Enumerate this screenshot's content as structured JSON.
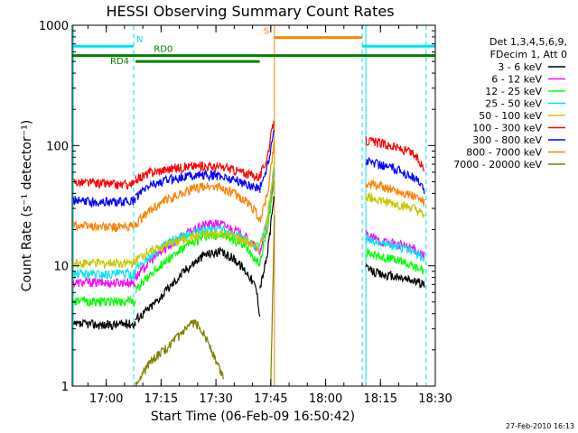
{
  "chart_data": {
    "type": "line",
    "title": "HESSI Observing Summary Count Rates",
    "xlabel": "Start Time (06-Feb-09 16:50:42)",
    "ylabel": "Count Rate (s⁻¹ detector⁻¹)",
    "yscale": "log",
    "ylim": [
      1,
      1000
    ],
    "xlim": [
      "16:50:42",
      "18:30:00"
    ],
    "x_ticks": [
      "17:00",
      "17:15",
      "17:30",
      "17:45",
      "18:00",
      "18:15",
      "18:30"
    ],
    "y_ticks": [
      1,
      10,
      100,
      1000
    ],
    "y_tick_labels": [
      "1",
      "10",
      "100",
      "1000"
    ],
    "footer": "27-Feb-2010 16:13",
    "legend_header": [
      "Det 1,3,4,5,6,9,",
      "FDecim 1, Att 0"
    ],
    "legend_position": "right",
    "gaps": [
      {
        "from": "17:08:00",
        "to": "17:42:00",
        "label": "RD4",
        "color": "#008000"
      },
      {
        "from": "17:46:00",
        "to": "18:10:00",
        "label": "",
        "color": "#ffffff"
      }
    ],
    "flag_bars": [
      {
        "label": "N",
        "color": "#00e5ee",
        "start": "16:50:42",
        "end": "18:30:00",
        "y": 670,
        "breaks": [
          [
            "17:07:30",
            "18:10:00"
          ]
        ]
      },
      {
        "label": "RD0",
        "color": "#008000",
        "start": "16:50:42",
        "end": "18:30:00",
        "y": 560,
        "breaks": []
      },
      {
        "label": "S",
        "color": "#ff8000",
        "start": "17:46:00",
        "end": "18:10:00",
        "y": 790,
        "breaks": []
      }
    ],
    "vlines": [
      {
        "time": "16:51:00",
        "color": "#00e5ee",
        "dashed": false
      },
      {
        "time": "17:07:30",
        "color": "#00e5ee",
        "dashed": true
      },
      {
        "time": "17:46:00",
        "color": "#ff8000",
        "dashed": false
      },
      {
        "time": "18:10:00",
        "color": "#00e5ee",
        "dashed": true
      },
      {
        "time": "18:11:00",
        "color": "#00e5ee",
        "dashed": false
      },
      {
        "time": "18:27:30",
        "color": "#00e5ee",
        "dashed": true
      }
    ],
    "series": [
      {
        "name": "3 - 6 keV",
        "color": "#000000",
        "segments": [
          {
            "x": [
              "16:51",
              "16:55",
              "17:00",
              "17:05",
              "17:08"
            ],
            "y": [
              3.2,
              3.3,
              3.2,
              3.3,
              3.3
            ]
          },
          {
            "x": [
              "17:08",
              "17:12",
              "17:17",
              "17:22",
              "17:27",
              "17:31",
              "17:35",
              "17:39",
              "17:41",
              "17:42"
            ],
            "y": [
              3.6,
              4.5,
              6.5,
              9.5,
              12.5,
              13.0,
              11.5,
              8.5,
              6.5,
              4.0
            ]
          },
          {
            "x": [
              "17:42",
              "17:44",
              "17:46"
            ],
            "y": [
              6.5,
              12.0,
              40.0
            ]
          },
          {
            "x": [
              "18:11",
              "18:15",
              "18:20",
              "18:24",
              "18:27"
            ],
            "y": [
              9.5,
              8.5,
              8.0,
              7.5,
              7.0
            ]
          }
        ]
      },
      {
        "name": "6 - 12 keV",
        "color": "#ff00ff",
        "segments": [
          {
            "x": [
              "16:51",
              "16:55",
              "17:00",
              "17:05",
              "17:08"
            ],
            "y": [
              7.2,
              7.3,
              7.2,
              7.3,
              7.2
            ]
          },
          {
            "x": [
              "17:08",
              "17:12",
              "17:17",
              "17:22",
              "17:27",
              "17:31",
              "17:35",
              "17:39",
              "17:41",
              "17:42"
            ],
            "y": [
              8.0,
              11.0,
              14.5,
              18.5,
              22.0,
              22.5,
              20.0,
              16.5,
              14.0,
              12.5
            ]
          },
          {
            "x": [
              "17:42",
              "17:44",
              "17:46"
            ],
            "y": [
              13.0,
              22.0,
              60.0
            ]
          },
          {
            "x": [
              "18:11",
              "18:15",
              "18:20",
              "18:24",
              "18:27"
            ],
            "y": [
              18.0,
              16.0,
              15.0,
              14.0,
              12.0
            ]
          }
        ]
      },
      {
        "name": "12 - 25 keV",
        "color": "#00ff00",
        "segments": [
          {
            "x": [
              "16:51",
              "16:55",
              "17:00",
              "17:05",
              "17:08"
            ],
            "y": [
              5.0,
              5.1,
              5.0,
              5.1,
              5.0
            ]
          },
          {
            "x": [
              "17:08",
              "17:12",
              "17:17",
              "17:22",
              "17:27",
              "17:31",
              "17:35",
              "17:39",
              "17:41",
              "17:42"
            ],
            "y": [
              6.2,
              8.5,
              11.5,
              14.5,
              17.5,
              18.0,
              16.5,
              13.5,
              11.0,
              10.5
            ]
          },
          {
            "x": [
              "17:42",
              "17:44",
              "17:46"
            ],
            "y": [
              11.0,
              20.0,
              50.0
            ]
          },
          {
            "x": [
              "18:11",
              "18:15",
              "18:20",
              "18:24",
              "18:27"
            ],
            "y": [
              13.0,
              12.0,
              11.0,
              10.0,
              9.0
            ]
          }
        ]
      },
      {
        "name": "25 - 50 keV",
        "color": "#00e5ee",
        "segments": [
          {
            "x": [
              "16:51",
              "16:55",
              "17:00",
              "17:05",
              "17:08"
            ],
            "y": [
              8.5,
              8.6,
              8.5,
              8.6,
              8.5
            ]
          },
          {
            "x": [
              "17:08",
              "17:12",
              "17:17",
              "17:22",
              "17:27",
              "17:31",
              "17:35",
              "17:39",
              "17:41",
              "17:42"
            ],
            "y": [
              9.5,
              12.0,
              15.5,
              18.0,
              20.0,
              20.5,
              18.5,
              16.0,
              14.5,
              14.0
            ]
          },
          {
            "x": [
              "17:42",
              "17:44",
              "17:46"
            ],
            "y": [
              14.5,
              24.0,
              70.0
            ]
          },
          {
            "x": [
              "18:11",
              "18:15",
              "18:20",
              "18:24",
              "18:27"
            ],
            "y": [
              17.0,
              15.5,
              14.5,
              13.0,
              11.5
            ]
          }
        ]
      },
      {
        "name": "50 - 100 keV",
        "color": "#c8c800",
        "segments": [
          {
            "x": [
              "16:51",
              "16:55",
              "17:00",
              "17:05",
              "17:08"
            ],
            "y": [
              10.5,
              10.6,
              10.5,
              10.6,
              10.5
            ]
          },
          {
            "x": [
              "17:08",
              "17:12",
              "17:17",
              "17:22",
              "17:27",
              "17:31",
              "17:35",
              "17:39",
              "17:41",
              "17:42"
            ],
            "y": [
              11.0,
              13.5,
              15.0,
              17.0,
              18.0,
              18.5,
              17.5,
              15.5,
              14.5,
              14.0
            ]
          },
          {
            "x": [
              "17:42",
              "17:44",
              "17:46"
            ],
            "y": [
              14.5,
              24.0,
              75.0
            ]
          },
          {
            "x": [
              "18:11",
              "18:15",
              "18:20",
              "18:24",
              "18:27"
            ],
            "y": [
              38.0,
              35.0,
              32.0,
              30.0,
              26.0
            ]
          }
        ]
      },
      {
        "name": "100 - 300 keV",
        "color": "#ff0000",
        "segments": [
          {
            "x": [
              "16:51",
              "16:55",
              "17:00",
              "17:05",
              "17:08"
            ],
            "y": [
              50.0,
              49.0,
              48.0,
              47.0,
              48.0
            ]
          },
          {
            "x": [
              "17:08",
              "17:12",
              "17:17",
              "17:22",
              "17:27",
              "17:31",
              "17:35",
              "17:39",
              "17:41",
              "17:42"
            ],
            "y": [
              52.0,
              60.0,
              64.0,
              67.0,
              68.0,
              66.0,
              63.0,
              58.0,
              56.0,
              55.0
            ]
          },
          {
            "x": [
              "17:42",
              "17:44",
              "17:46"
            ],
            "y": [
              55.0,
              80.0,
              170.0
            ]
          },
          {
            "x": [
              "18:11",
              "18:15",
              "18:20",
              "18:24",
              "18:27"
            ],
            "y": [
              110.0,
              105.0,
              95.0,
              85.0,
              65.0
            ]
          }
        ]
      },
      {
        "name": "300 - 800 keV",
        "color": "#0000ff",
        "segments": [
          {
            "x": [
              "16:51",
              "16:55",
              "17:00",
              "17:05",
              "17:08"
            ],
            "y": [
              35.0,
              34.0,
              34.0,
              34.0,
              35.0
            ]
          },
          {
            "x": [
              "17:08",
              "17:12",
              "17:17",
              "17:22",
              "17:27",
              "17:31",
              "17:35",
              "17:39",
              "17:41",
              "17:42"
            ],
            "y": [
              37.0,
              47.0,
              52.0,
              56.0,
              57.0,
              56.0,
              52.0,
              47.0,
              45.0,
              44.0
            ]
          },
          {
            "x": [
              "17:42",
              "17:44",
              "17:46"
            ],
            "y": [
              44.0,
              65.0,
              140.0
            ]
          },
          {
            "x": [
              "18:11",
              "18:15",
              "18:20",
              "18:24",
              "18:27"
            ],
            "y": [
              75.0,
              70.0,
              62.0,
              55.0,
              43.0
            ]
          }
        ]
      },
      {
        "name": "800 - 7000 keV",
        "color": "#ff8000",
        "segments": [
          {
            "x": [
              "16:51",
              "16:55",
              "17:00",
              "17:05",
              "17:08"
            ],
            "y": [
              22.0,
              21.5,
              21.0,
              21.0,
              21.5
            ]
          },
          {
            "x": [
              "17:08",
              "17:12",
              "17:17",
              "17:22",
              "17:27",
              "17:31",
              "17:35",
              "17:39",
              "17:41",
              "17:42"
            ],
            "y": [
              22.0,
              29.0,
              36.0,
              42.0,
              46.0,
              45.0,
              40.0,
              33.0,
              28.0,
              23.0
            ]
          },
          {
            "x": [
              "17:42",
              "17:44",
              "17:46"
            ],
            "y": [
              24.0,
              38.0,
              110.0
            ]
          },
          {
            "x": [
              "18:11",
              "18:15",
              "18:20",
              "18:24",
              "18:27"
            ],
            "y": [
              48.0,
              46.0,
              42.0,
              38.0,
              34.0
            ]
          }
        ]
      },
      {
        "name": "7000 - 20000 keV",
        "color": "#808000",
        "segments": [
          {
            "x": [
              "17:08",
              "17:12",
              "17:16",
              "17:20",
              "17:24",
              "17:26",
              "17:28",
              "17:30",
              "17:32"
            ],
            "y": [
              1.0,
              1.6,
              2.0,
              2.6,
              3.4,
              3.0,
              2.3,
              1.6,
              1.2
            ]
          },
          {
            "x": [
              "17:45",
              "17:46"
            ],
            "y": [
              1.1,
              25.0
            ]
          }
        ]
      }
    ]
  }
}
